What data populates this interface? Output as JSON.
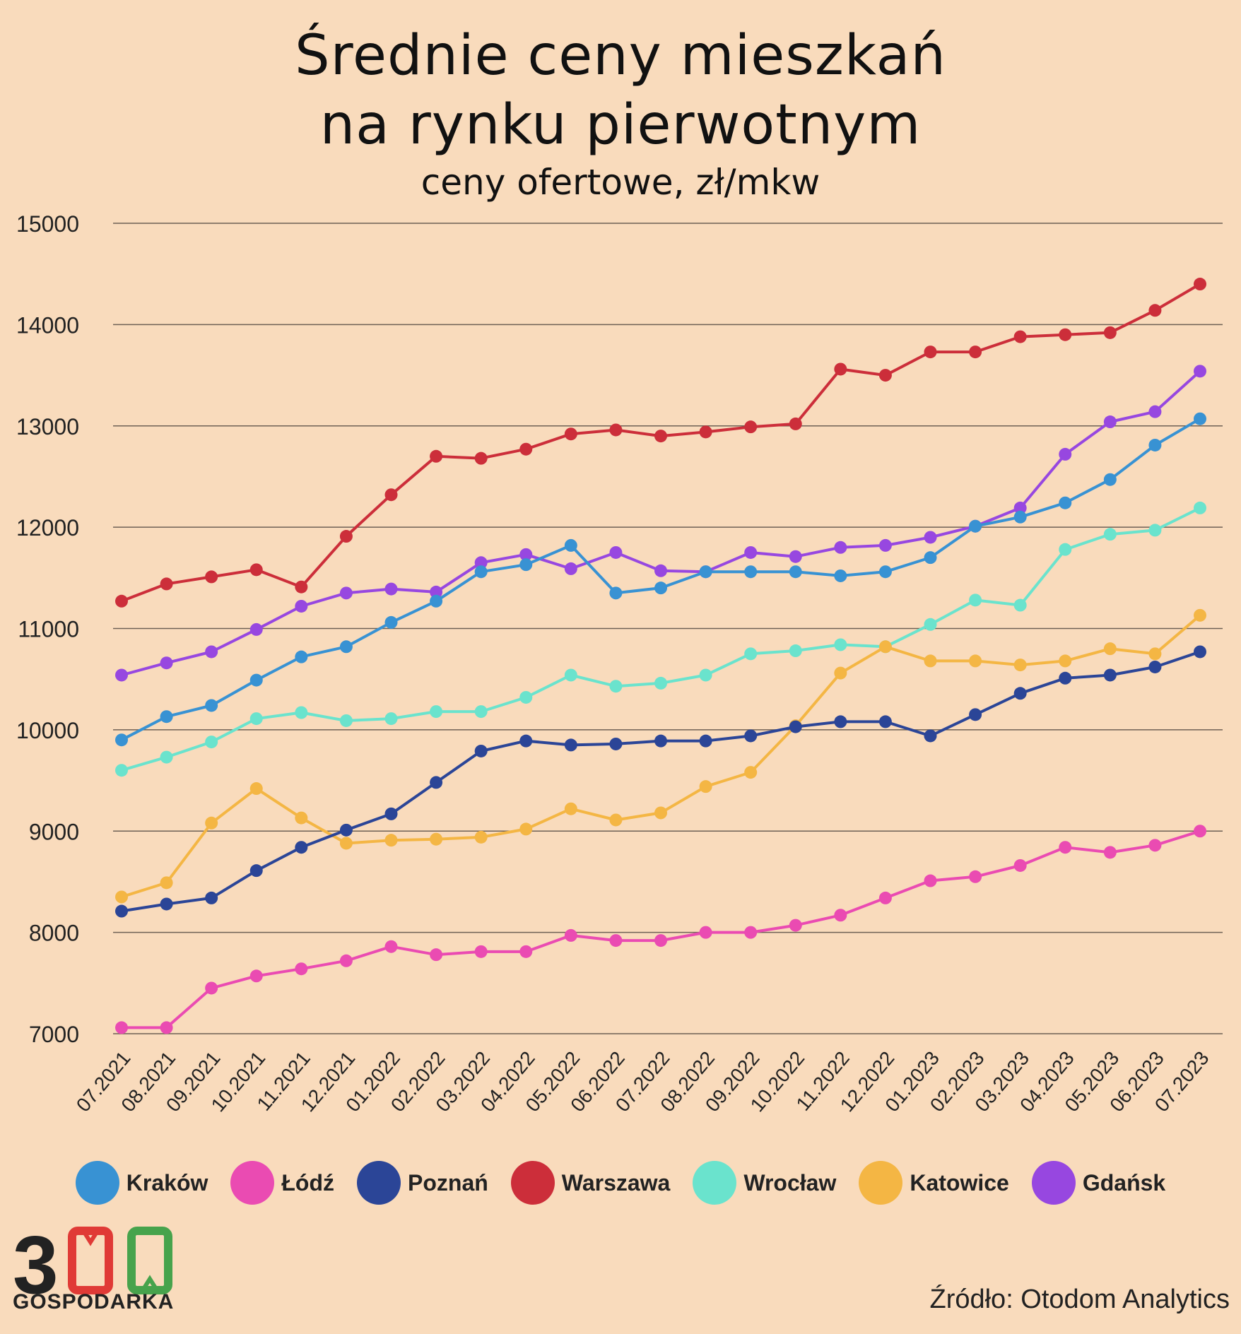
{
  "header": {
    "title_line1": "Średnie ceny mieszkań",
    "title_line2": "na rynku pierwotnym",
    "subtitle": "ceny ofertowe, zł/mkw"
  },
  "chart_data": {
    "type": "line",
    "title": "Średnie ceny mieszkań na rynku pierwotnym",
    "subtitle": "ceny ofertowe, zł/mkw",
    "xlabel": "",
    "ylabel": "",
    "ylim": [
      7000,
      15000
    ],
    "yticks": [
      7000,
      8000,
      9000,
      10000,
      11000,
      12000,
      13000,
      14000,
      15000
    ],
    "grid": true,
    "legend_position": "bottom",
    "categories": [
      "07.2021",
      "08.2021",
      "09.2021",
      "10.2021",
      "11.2021",
      "12.2021",
      "01.2022",
      "02.2022",
      "03.2022",
      "04.2022",
      "05.2022",
      "06.2022",
      "07.2022",
      "08.2022",
      "09.2022",
      "10.2022",
      "11.2022",
      "12.2022",
      "01.2023",
      "02.2023",
      "03.2023",
      "04.2023",
      "05.2023",
      "06.2023",
      "07.2023"
    ],
    "series": [
      {
        "name": "Warszawa",
        "color": "#cc2e3a",
        "values": [
          11270,
          11440,
          11510,
          11580,
          11410,
          11910,
          12320,
          12700,
          12680,
          12770,
          12920,
          12960,
          12900,
          12940,
          12990,
          13020,
          13560,
          13500,
          13730,
          13730,
          13880,
          13900,
          13920,
          14140,
          14400
        ]
      },
      {
        "name": "Gdańsk",
        "color": "#9747e0",
        "values": [
          10540,
          10660,
          10770,
          10990,
          11220,
          11350,
          11390,
          11360,
          11650,
          11730,
          11590,
          11750,
          11570,
          11560,
          11750,
          11710,
          11800,
          11820,
          11900,
          12010,
          12190,
          12720,
          13040,
          13140,
          13540
        ]
      },
      {
        "name": "Kraków",
        "color": "#3892d3",
        "values": [
          9900,
          10130,
          10240,
          10490,
          10720,
          10820,
          11060,
          11270,
          11560,
          11630,
          11820,
          11350,
          11400,
          11560,
          11560,
          11560,
          11520,
          11560,
          11700,
          12010,
          12100,
          12240,
          12470,
          12810,
          13070
        ]
      },
      {
        "name": "Wrocław",
        "color": "#6ae3cd",
        "values": [
          9600,
          9730,
          9880,
          10110,
          10170,
          10090,
          10110,
          10180,
          10180,
          10320,
          10540,
          10430,
          10460,
          10540,
          10750,
          10780,
          10840,
          10820,
          11040,
          11280,
          11230,
          11780,
          11930,
          11970,
          12190
        ]
      },
      {
        "name": "Katowice",
        "color": "#f4b644",
        "values": [
          8350,
          8490,
          9080,
          9420,
          9130,
          8880,
          8910,
          8920,
          8940,
          9020,
          9220,
          9110,
          9180,
          9440,
          9580,
          10040,
          10560,
          10820,
          10680,
          10680,
          10640,
          10680,
          10800,
          10750,
          11130
        ]
      },
      {
        "name": "Poznań",
        "color": "#2b4597",
        "values": [
          8210,
          8280,
          8340,
          8610,
          8840,
          9010,
          9170,
          9480,
          9790,
          9890,
          9850,
          9860,
          9890,
          9890,
          9940,
          10030,
          10080,
          10080,
          9940,
          10150,
          10360,
          10510,
          10540,
          10620,
          10770
        ]
      },
      {
        "name": "Łódź",
        "color": "#ea4bb2",
        "values": [
          7060,
          7060,
          7450,
          7570,
          7640,
          7720,
          7860,
          7780,
          7810,
          7810,
          7970,
          7920,
          7920,
          8000,
          8000,
          8070,
          8170,
          8340,
          8510,
          8550,
          8660,
          8840,
          8790,
          8860,
          9000
        ]
      }
    ]
  },
  "legend": {
    "items": [
      {
        "label": "Kraków",
        "color": "#3892d3"
      },
      {
        "label": "Łódź",
        "color": "#ea4bb2"
      },
      {
        "label": "Poznań",
        "color": "#2b4597"
      },
      {
        "label": "Warszawa",
        "color": "#cc2e3a"
      },
      {
        "label": "Wrocław",
        "color": "#6ae3cd"
      },
      {
        "label": "Katowice",
        "color": "#f4b644"
      },
      {
        "label": "Gdańsk",
        "color": "#9747e0"
      }
    ]
  },
  "logo": {
    "text": "GOSPODARKA",
    "digit": "3",
    "colors": [
      "#222222",
      "#e03a36",
      "#47a34c"
    ]
  },
  "footer": {
    "source": "Źródło: Otodom Analytics"
  }
}
